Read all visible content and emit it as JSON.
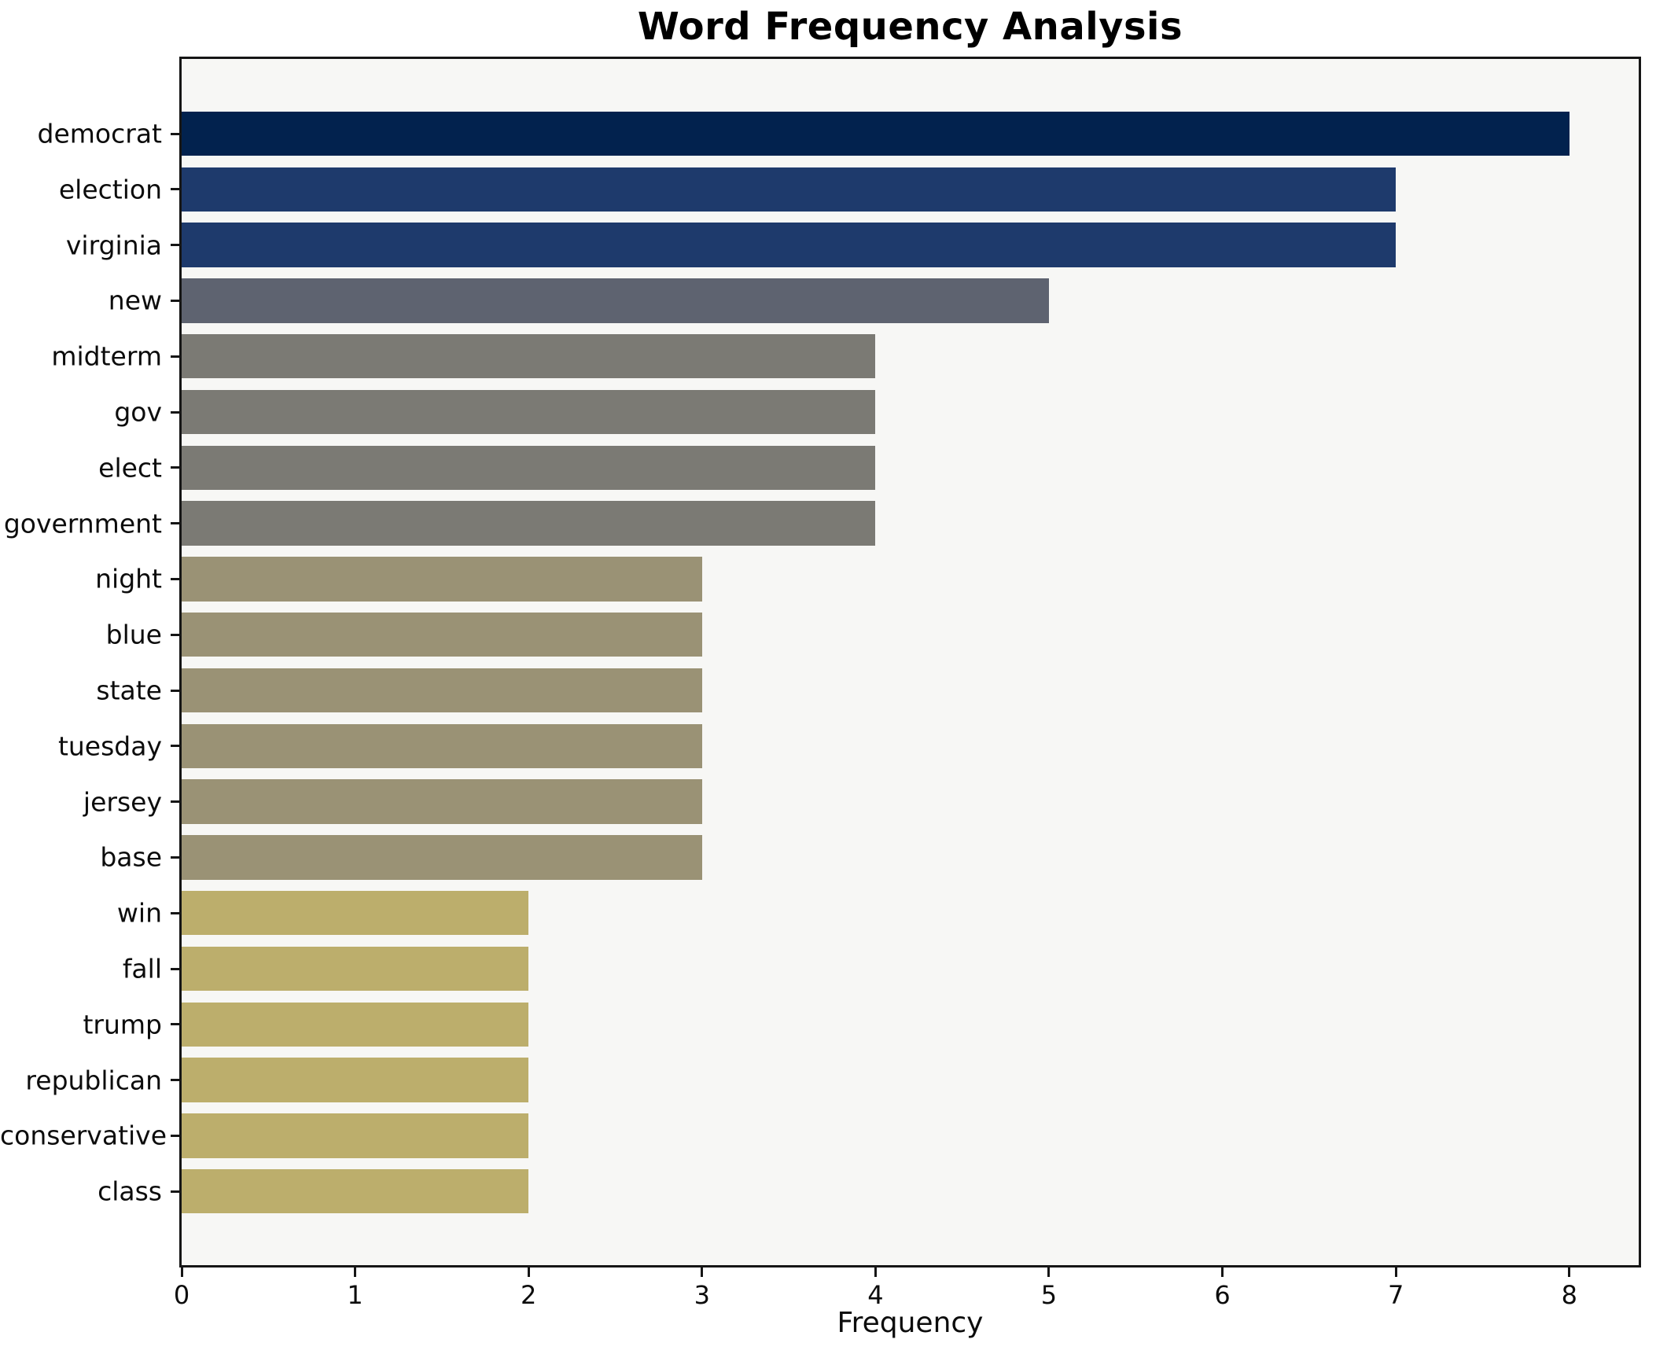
{
  "chart_data": {
    "type": "bar",
    "orientation": "horizontal",
    "title": "Word Frequency Analysis",
    "xlabel": "Frequency",
    "ylabel": "",
    "categories": [
      "democrat",
      "election",
      "virginia",
      "new",
      "midterm",
      "gov",
      "elect",
      "government",
      "night",
      "blue",
      "state",
      "tuesday",
      "jersey",
      "base",
      "win",
      "fall",
      "trump",
      "republican",
      "conservative",
      "class"
    ],
    "values": [
      8,
      7,
      7,
      5,
      4,
      4,
      4,
      4,
      3,
      3,
      3,
      3,
      3,
      3,
      2,
      2,
      2,
      2,
      2,
      2
    ],
    "bar_colors": [
      "#02224e",
      "#1e3a6c",
      "#1e3a6c",
      "#5e6370",
      "#7b7a74",
      "#7b7a74",
      "#7b7a74",
      "#7b7a74",
      "#9a9275",
      "#9a9275",
      "#9a9275",
      "#9a9275",
      "#9a9275",
      "#9a9275",
      "#bcae6c",
      "#bcae6c",
      "#bcae6c",
      "#bcae6c",
      "#bcae6c",
      "#bcae6c"
    ],
    "xlim": [
      0,
      8.4
    ],
    "x_ticks": [
      0,
      1,
      2,
      3,
      4,
      5,
      6,
      7,
      8
    ],
    "grid": false,
    "legend": null,
    "plot_bg": "#f7f7f5",
    "spine_color": "#161616",
    "colormap": "cividis"
  }
}
